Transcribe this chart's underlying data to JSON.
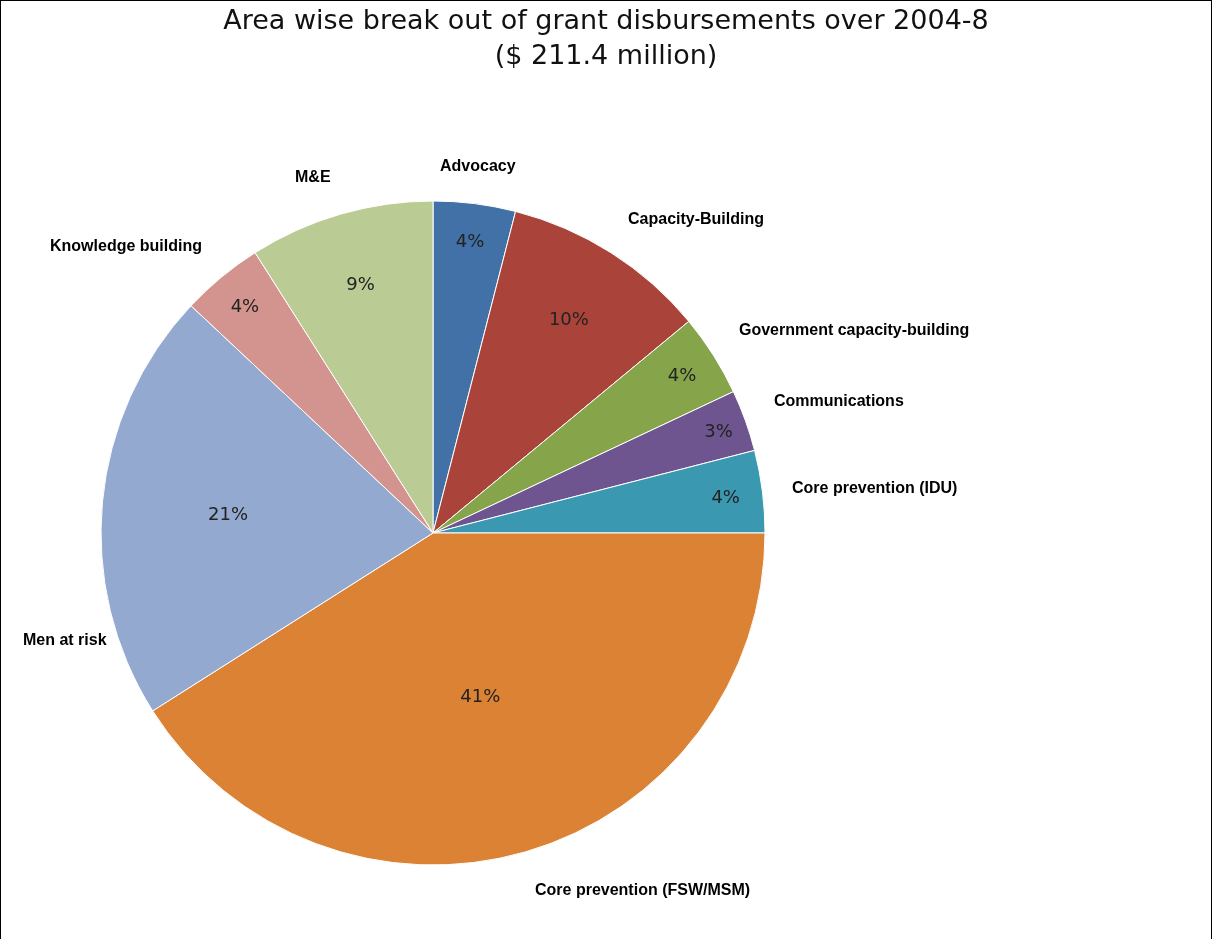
{
  "chart_data": {
    "type": "pie",
    "title": "Area wise break out of grant disbursements over 2004-8",
    "subtitle": "($ 211.4 million)",
    "categories": [
      "Advocacy",
      "Capacity-Building",
      "Government capacity-building",
      "Communications",
      "Core prevention (IDU)",
      "Core prevention (FSW/MSM)",
      "Men at risk",
      "Knowledge building",
      "M&E"
    ],
    "values": [
      4,
      10,
      4,
      3,
      4,
      41,
      21,
      4,
      9
    ],
    "value_labels": [
      "4%",
      "10%",
      "4%",
      "3%",
      "4%",
      "41%",
      "21%",
      "4%",
      "9%"
    ],
    "colors": [
      "#4171a6",
      "#aa443a",
      "#86a44a",
      "#6e5590",
      "#3a98b0",
      "#db8234",
      "#94a9cf",
      "#d3948f",
      "#bbcb94"
    ],
    "legend": false
  }
}
